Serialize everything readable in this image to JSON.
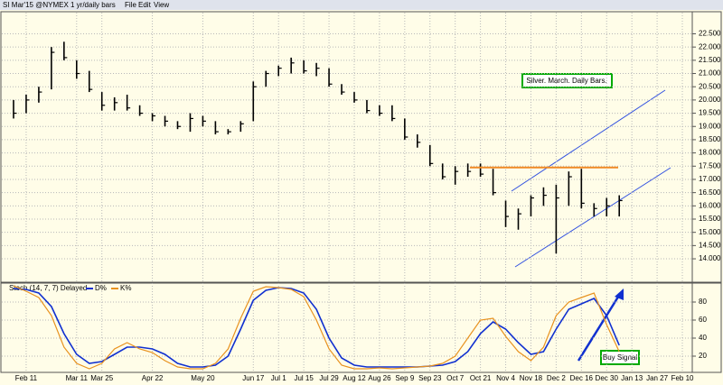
{
  "toolbar": {
    "symbol": "SI Mar'15 @NYMEX",
    "period": "1 yr/daily bars",
    "menus": [
      "File",
      "Edit",
      "View"
    ]
  },
  "chart_data": [
    {
      "type": "ohlc",
      "annotations": [
        "Silver. March. Daily Bars."
      ],
      "resistance_level": 17.45,
      "resistance_color": "#f08a24",
      "channel_color": "#3050e0",
      "color": "#000000",
      "categories": [
        null,
        "Feb 11",
        null,
        null,
        null,
        "Mar 11",
        null,
        "Mar 25",
        null,
        null,
        null,
        "Apr 22",
        null,
        null,
        null,
        "May 20",
        null,
        null,
        null,
        "Jun 17",
        null,
        "Jul 1",
        null,
        "Jul 15",
        null,
        "Jul 29",
        null,
        "Aug 12",
        null,
        "Aug 26",
        null,
        "Sep 9",
        null,
        "Sep 23",
        null,
        "Oct 7",
        null,
        "Oct 21",
        null,
        "Nov 4",
        null,
        "Nov 18",
        null,
        "Dec 2",
        null,
        "Dec 16",
        null,
        "Dec 30",
        null,
        "Jan 13",
        null,
        "Jan 27",
        null,
        "Feb 10"
      ],
      "high": [
        20.0,
        20.2,
        20.5,
        22.0,
        22.2,
        21.5,
        21.1,
        20.3,
        20.1,
        20.2,
        19.8,
        19.5,
        19.4,
        19.2,
        19.5,
        19.4,
        19.2,
        18.9,
        19.2,
        20.7,
        21.1,
        21.3,
        21.6,
        21.5,
        21.4,
        21.2,
        20.6,
        20.3,
        20.0,
        19.8,
        19.8,
        19.3,
        18.7,
        18.3,
        17.6,
        17.5,
        17.6,
        17.6,
        17.4,
        16.2,
        15.9,
        16.4,
        16.7,
        16.8,
        17.3,
        17.4,
        16.1,
        16.3,
        16.4,
        null,
        null,
        null,
        null,
        null
      ],
      "low": [
        19.3,
        19.5,
        19.9,
        20.4,
        21.5,
        20.8,
        20.3,
        19.6,
        19.6,
        19.6,
        19.4,
        19.2,
        19.0,
        18.9,
        18.8,
        19.0,
        18.7,
        18.7,
        18.8,
        19.2,
        20.5,
        20.9,
        21.0,
        21.0,
        20.9,
        20.5,
        20.2,
        19.9,
        19.5,
        19.4,
        19.2,
        18.5,
        18.2,
        17.5,
        17.0,
        16.8,
        17.1,
        17.1,
        16.4,
        15.2,
        15.1,
        15.6,
        16.0,
        14.2,
        16.0,
        15.9,
        15.6,
        15.6,
        15.6,
        null,
        null,
        null,
        null,
        null
      ],
      "close": [
        19.5,
        20.0,
        20.3,
        21.8,
        21.6,
        21.0,
        20.4,
        19.8,
        19.9,
        19.7,
        19.5,
        19.4,
        19.2,
        19.0,
        19.3,
        19.2,
        18.8,
        18.8,
        19.1,
        20.5,
        21.0,
        21.2,
        21.4,
        21.1,
        21.2,
        20.6,
        20.3,
        20.0,
        19.6,
        19.5,
        19.3,
        18.6,
        18.4,
        17.6,
        17.1,
        17.3,
        17.3,
        17.2,
        16.5,
        15.6,
        15.7,
        16.3,
        16.4,
        16.3,
        17.1,
        16.1,
        15.9,
        16.0,
        16.2,
        null,
        null,
        null,
        null,
        null
      ],
      "ylim": [
        13.15,
        23.3
      ],
      "yticks": [
        {
          "value": 14.0,
          "label": "14.000"
        },
        {
          "value": 14.5,
          "label": "14.500"
        },
        {
          "value": 15.0,
          "label": "15.000"
        },
        {
          "value": 15.5,
          "label": "15.500"
        },
        {
          "value": 16.0,
          "label": "16.000"
        },
        {
          "value": 16.5,
          "label": "16.500"
        },
        {
          "value": 17.0,
          "label": "17.000"
        },
        {
          "value": 17.5,
          "label": "17.500"
        },
        {
          "value": 18.0,
          "label": "18.000"
        },
        {
          "value": 18.5,
          "label": "18.500"
        },
        {
          "value": 19.0,
          "label": "19.000"
        },
        {
          "value": 19.5,
          "label": "19.500"
        },
        {
          "value": 20.0,
          "label": "20.000"
        },
        {
          "value": 20.5,
          "label": "20.500"
        },
        {
          "value": 21.0,
          "label": "21.000"
        },
        {
          "value": 21.5,
          "label": "21.500"
        },
        {
          "value": 22.0,
          "label": "22.000"
        },
        {
          "value": 22.5,
          "label": "22.500"
        }
      ],
      "grid": true
    },
    {
      "type": "line",
      "title": "Stoch (14, 7, 7) Delayed",
      "annotations": [
        "Buy Signal"
      ],
      "series": [
        {
          "name": "D%",
          "color": "#1030d0",
          "values": [
            95,
            94,
            90,
            75,
            45,
            22,
            12,
            14,
            22,
            30,
            30,
            28,
            22,
            12,
            8,
            8,
            10,
            20,
            50,
            82,
            93,
            96,
            95,
            90,
            72,
            40,
            18,
            10,
            8,
            8,
            8,
            8,
            8,
            9,
            10,
            14,
            25,
            45,
            58,
            50,
            35,
            22,
            25,
            50,
            72,
            78,
            84,
            65,
            32,
            null,
            null,
            null,
            null,
            null
          ]
        },
        {
          "name": "K%",
          "color": "#e8921f",
          "values": [
            98,
            92,
            85,
            65,
            30,
            12,
            6,
            12,
            28,
            35,
            28,
            24,
            15,
            8,
            6,
            6,
            12,
            28,
            62,
            92,
            97,
            96,
            94,
            86,
            60,
            28,
            10,
            6,
            6,
            7,
            6,
            7,
            8,
            9,
            12,
            20,
            40,
            60,
            62,
            42,
            25,
            15,
            30,
            65,
            80,
            85,
            90,
            55,
            25,
            null,
            null,
            null,
            null,
            null
          ]
        }
      ],
      "ylim": [
        3,
        100
      ],
      "yticks": [
        20,
        40,
        60,
        80
      ],
      "grid": true
    }
  ]
}
